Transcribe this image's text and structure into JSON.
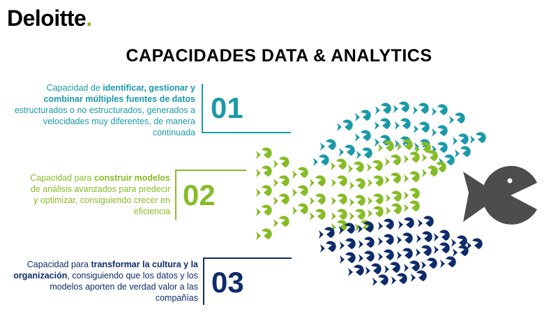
{
  "brand": {
    "name": "Deloitte",
    "dot": "."
  },
  "title": "CAPACIDADES DATA & ANALYTICS",
  "colors": {
    "teal": "#1a9aa8",
    "green": "#86bc25",
    "navy": "#0e2c6b",
    "gray": "#4d4d4d"
  },
  "capabilities": [
    {
      "number": "01",
      "color": "#1a9aa8",
      "parts": [
        {
          "t": "Capacidad de ",
          "b": false
        },
        {
          "t": "identificar, gestionar y combinar múltiples fuentes de datos",
          "b": true
        },
        {
          "t": " estructurados o no estructurados, generados a velocidades muy diferentes, de manera continuada",
          "b": false
        }
      ]
    },
    {
      "number": "02",
      "color": "#86bc25",
      "parts": [
        {
          "t": "Capacidad para ",
          "b": false
        },
        {
          "t": "construir modelos",
          "b": true
        },
        {
          "t": " de análisis avanzados para predecir y optimizar, consiguiendo crecer en eficiencia",
          "b": false
        }
      ]
    },
    {
      "number": "03",
      "color": "#0e2c6b",
      "parts": [
        {
          "t": "Capacidad para ",
          "b": false
        },
        {
          "t": "transformar la cultura y la organización",
          "b": true
        },
        {
          "t": ", consiguiendo que los datos y los modelos aporten de verdad valor a las compañías",
          "b": false
        }
      ]
    }
  ],
  "illustration": {
    "description_icon": "school-of-fish-icon",
    "predator_icon": "big-fish-icon"
  }
}
